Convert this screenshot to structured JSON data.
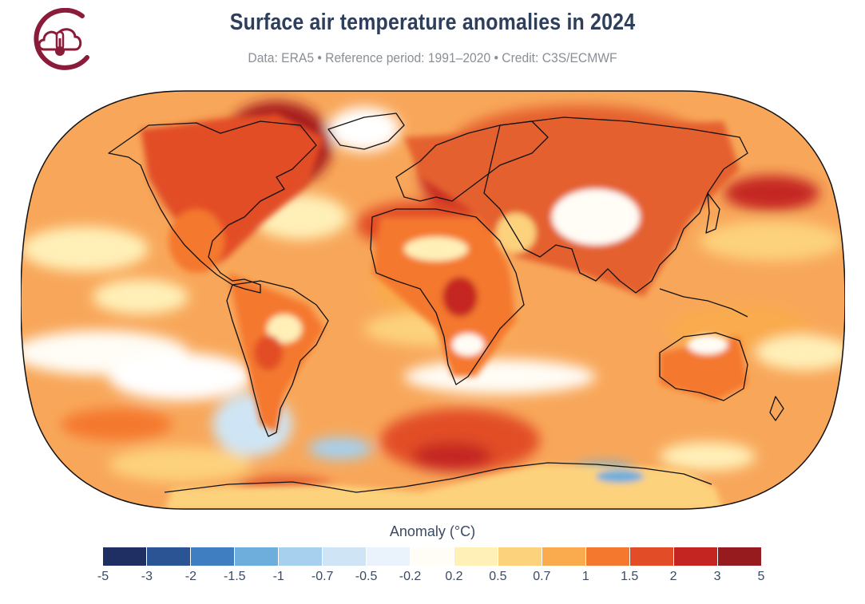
{
  "header": {
    "title": "Surface air temperature anomalies in 2024",
    "subtitle": "Data: ERA5 • Reference period: 1991–2020 • Credit: C3S/ECMWF"
  },
  "logo": {
    "icon": "cloud-thermometer-icon",
    "color": "#8a1c3a"
  },
  "map": {
    "projection": "Robinson",
    "ocean_base_color": "#f7a35c",
    "coastline_color": "#111111"
  },
  "legend": {
    "title": "Anomaly (°C)",
    "colors": [
      "#1f2f63",
      "#2b5494",
      "#3f7ec0",
      "#6eaedc",
      "#a6d0ee",
      "#cfe5f5",
      "#eaf3fb",
      "#fffdf6",
      "#fff0b8",
      "#fdd27d",
      "#f9ab4e",
      "#f4782e",
      "#e24d27",
      "#c52520",
      "#961b1e"
    ],
    "ticks": [
      "-5",
      "-3",
      "-2",
      "-1.5",
      "-1",
      "-0.7",
      "-0.5",
      "-0.2",
      "0.2",
      "0.5",
      "0.7",
      "1",
      "1.5",
      "2",
      "3",
      "5"
    ]
  }
}
